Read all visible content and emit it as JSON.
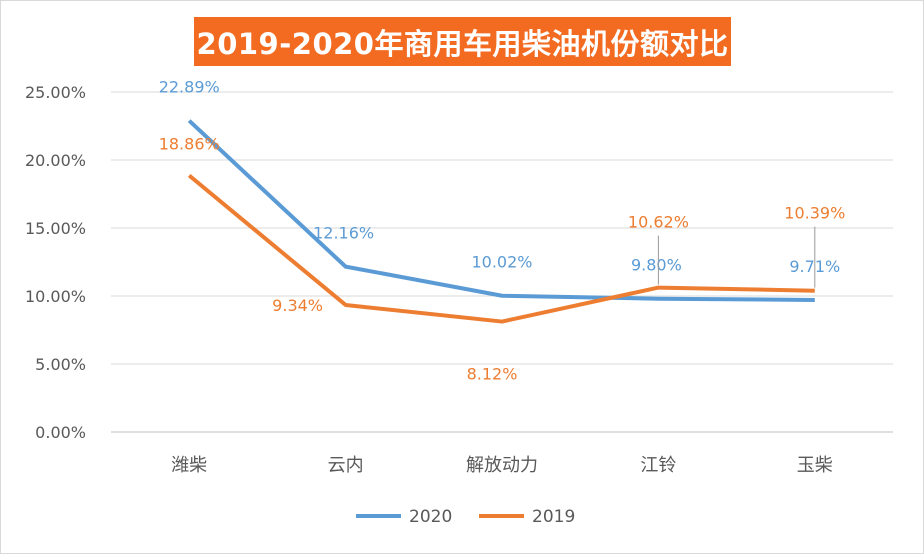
{
  "chart_data": {
    "type": "line",
    "title": "2019-2020年商用车用柴油机份额对比",
    "categories": [
      "潍柴",
      "云内",
      "解放动力",
      "江铃",
      "玉柴"
    ],
    "ylim": [
      0,
      25
    ],
    "yticks": [
      0,
      5,
      10,
      15,
      20,
      25
    ],
    "ytick_labels": [
      "0.00%",
      "5.00%",
      "10.00%",
      "15.00%",
      "20.00%",
      "25.00%"
    ],
    "grid": true,
    "legend": "bottom",
    "series": [
      {
        "name": "2020",
        "color": "#5B9BD5",
        "values": [
          22.89,
          12.16,
          10.02,
          9.8,
          9.71
        ],
        "labels": [
          "22.89%",
          "12.16%",
          "10.02%",
          "9.80%",
          "9.71%"
        ]
      },
      {
        "name": "2019",
        "color": "#ED7D31",
        "values": [
          18.86,
          9.34,
          8.12,
          10.62,
          10.39
        ],
        "labels": [
          "18.86%",
          "9.34%",
          "8.12%",
          "10.62%",
          "10.39%"
        ]
      }
    ]
  }
}
